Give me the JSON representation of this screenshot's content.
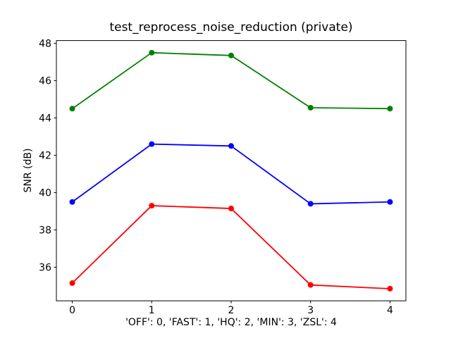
{
  "figure": {
    "background": "#ffffff"
  },
  "chart_data": {
    "type": "line",
    "title": "test_reprocess_noise_reduction (private)",
    "xlabel": "'OFF': 0, 'FAST': 1, 'HQ': 2, 'MIN': 3, 'ZSL': 4",
    "ylabel": "SNR (dB)",
    "x": [
      0,
      1,
      2,
      3,
      4
    ],
    "series": [
      {
        "name": "green-series",
        "color": "#008000",
        "values": [
          44.5,
          47.5,
          47.35,
          44.55,
          44.5
        ]
      },
      {
        "name": "blue-series",
        "color": "#0000ff",
        "values": [
          39.5,
          42.6,
          42.5,
          39.4,
          39.5
        ]
      },
      {
        "name": "red-series",
        "color": "#ff0000",
        "values": [
          35.15,
          39.3,
          39.15,
          35.05,
          34.85
        ]
      }
    ],
    "xticks": [
      0,
      1,
      2,
      3,
      4
    ],
    "yticks": [
      36,
      38,
      40,
      42,
      44,
      46,
      48
    ],
    "xlim": [
      -0.2,
      4.2
    ],
    "ylim": [
      34.2,
      48.15
    ],
    "grid": false,
    "legend": "none",
    "marker": "o",
    "axis_color": "#000000"
  }
}
